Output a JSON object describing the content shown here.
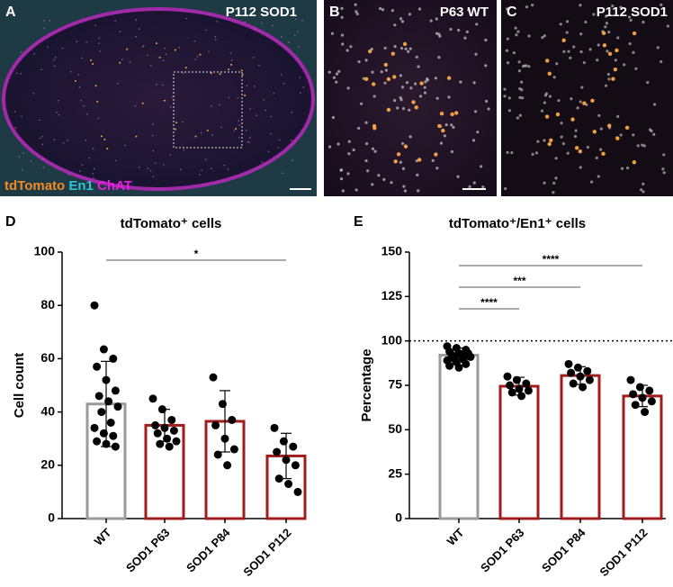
{
  "panels": [
    {
      "label": "A",
      "caption": "P112 SOD1",
      "legend": [
        {
          "text": "tdTomato",
          "color": "#f08a24"
        },
        {
          "text": "En1",
          "color": "#2ec4d6"
        },
        {
          "text": "ChAT",
          "color": "#e81ee0"
        }
      ]
    },
    {
      "label": "B",
      "caption": "P63 WT"
    },
    {
      "label": "C",
      "caption": "P112 SOD1"
    }
  ],
  "chart_data": [
    {
      "type": "bar",
      "panel_label": "D",
      "title": "tdTomato⁺ cells",
      "y_label": "Cell count",
      "categories": [
        "WT",
        "SOD1 P63",
        "SOD1 P84",
        "SOD1 P112"
      ],
      "values": [
        43,
        35,
        36.5,
        23.5
      ],
      "errors": [
        16,
        6,
        11.5,
        8.5
      ],
      "colors": [
        "#9a9a9a",
        "#a31c1c",
        "#a31c1c",
        "#a31c1c"
      ],
      "points": [
        [
          80,
          63.5,
          60,
          57,
          52,
          48,
          46,
          44,
          42,
          40,
          36,
          34,
          32,
          31,
          29,
          28,
          27
        ],
        [
          45,
          41,
          37,
          35,
          34,
          33,
          32,
          30,
          29,
          28,
          27
        ],
        [
          53,
          43,
          37,
          35,
          30,
          26,
          24,
          20
        ],
        [
          34,
          29,
          27,
          25,
          22,
          20,
          15,
          13,
          10
        ]
      ],
      "ylim": [
        0,
        100
      ],
      "yticks": [
        0,
        20,
        40,
        60,
        80,
        100
      ],
      "comparisons": [
        {
          "groups": [
            "WT",
            "SOD1 P112"
          ],
          "label": "*"
        }
      ]
    },
    {
      "type": "bar",
      "panel_label": "E",
      "title": "tdTomato⁺/En1⁺ cells",
      "y_label": "Percentage",
      "categories": [
        "WT",
        "SOD1 P63",
        "SOD1 P84",
        "SOD1 P112"
      ],
      "values": [
        92,
        74.5,
        80.5,
        69
      ],
      "errors": [
        4,
        5,
        5,
        6
      ],
      "colors": [
        "#9a9a9a",
        "#a31c1c",
        "#a31c1c",
        "#a31c1c"
      ],
      "points": [
        [
          97,
          96,
          95,
          94,
          93,
          93,
          92,
          92,
          91,
          90,
          90,
          89,
          88,
          87,
          86,
          85
        ],
        [
          80,
          78,
          76,
          75,
          73,
          72,
          71,
          69
        ],
        [
          87,
          85,
          83,
          82,
          80,
          78,
          76,
          74
        ],
        [
          78,
          74,
          72,
          70,
          68,
          66,
          64,
          60
        ]
      ],
      "ylim": [
        0,
        150
      ],
      "yticks": [
        0,
        25,
        50,
        75,
        100,
        125,
        150
      ],
      "reference_line": 100,
      "comparisons": [
        {
          "groups": [
            "WT",
            "SOD1 P63"
          ],
          "label": "****"
        },
        {
          "groups": [
            "WT",
            "SOD1 P84"
          ],
          "label": "***"
        },
        {
          "groups": [
            "WT",
            "SOD1 P112"
          ],
          "label": "****"
        }
      ]
    }
  ]
}
